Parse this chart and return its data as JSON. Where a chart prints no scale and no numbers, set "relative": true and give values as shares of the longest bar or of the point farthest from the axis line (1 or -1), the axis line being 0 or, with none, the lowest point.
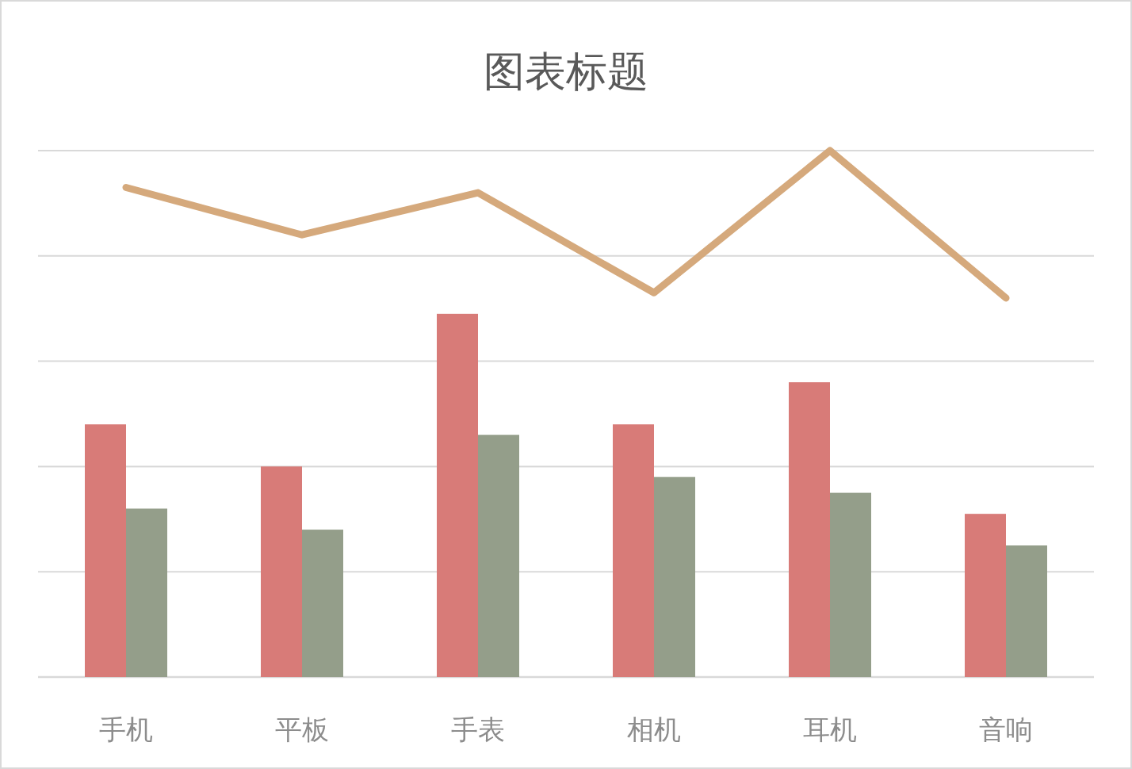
{
  "chart_data": {
    "type": "bar",
    "title": "图表标题",
    "relative": true,
    "grid": "y",
    "categories": [
      "手机",
      "平板",
      "手表",
      "相机",
      "耳机",
      "音响"
    ],
    "series": [
      {
        "color": "#d87b78",
        "values": [
          0.48,
          0.4,
          0.69,
          0.48,
          0.56,
          0.31
        ]
      },
      {
        "color": "#949e8a",
        "values": [
          0.32,
          0.28,
          0.46,
          0.38,
          0.35,
          0.25
        ]
      },
      {
        "type": "line",
        "color": "#d5a97c",
        "values": [
          0.93,
          0.84,
          0.92,
          0.73,
          1.0,
          0.72
        ]
      }
    ]
  }
}
